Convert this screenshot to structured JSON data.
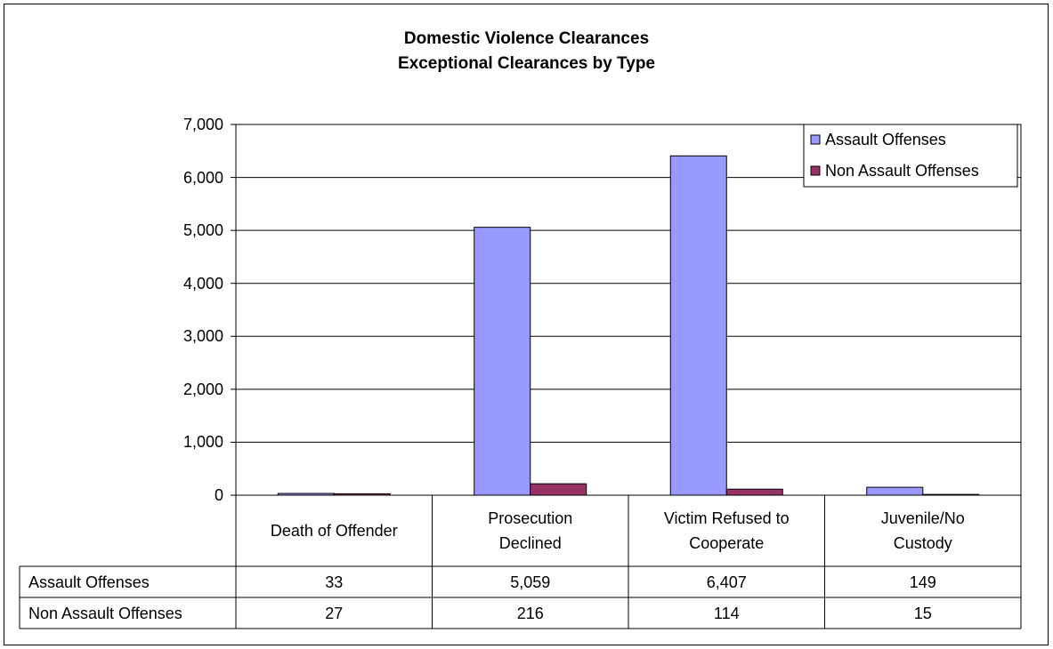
{
  "chart_data": {
    "type": "bar",
    "title": "Domestic Violence Clearances",
    "subtitle": "Exceptional Clearances by Type",
    "categories": [
      "Death of Offender",
      "Prosecution Declined",
      "Victim Refused to Cooperate",
      "Juvenile/No Custody"
    ],
    "series": [
      {
        "name": "Assault Offenses",
        "color": "#9999ff",
        "values": [
          33,
          5059,
          6407,
          149
        ],
        "value_labels": [
          "33",
          "5,059",
          "6,407",
          "149"
        ]
      },
      {
        "name": "Non Assault Offenses",
        "color": "#993366",
        "values": [
          27,
          216,
          114,
          15
        ]
      }
    ],
    "ylim": [
      0,
      7000
    ],
    "yticks": [
      0,
      {
        "value": 1000,
        "label": "1,000"
      },
      {
        "value": 2000,
        "label": "2,000"
      },
      {
        "value": 3000,
        "label": "3,000"
      },
      {
        "value": 4000,
        "label": "4,000"
      },
      {
        "value": 5000,
        "label": "5,000"
      },
      {
        "value": 6000,
        "label": "6,000"
      },
      {
        "value": 7000,
        "label": "7,000"
      }
    ],
    "grid": true,
    "legend": "top-right"
  }
}
